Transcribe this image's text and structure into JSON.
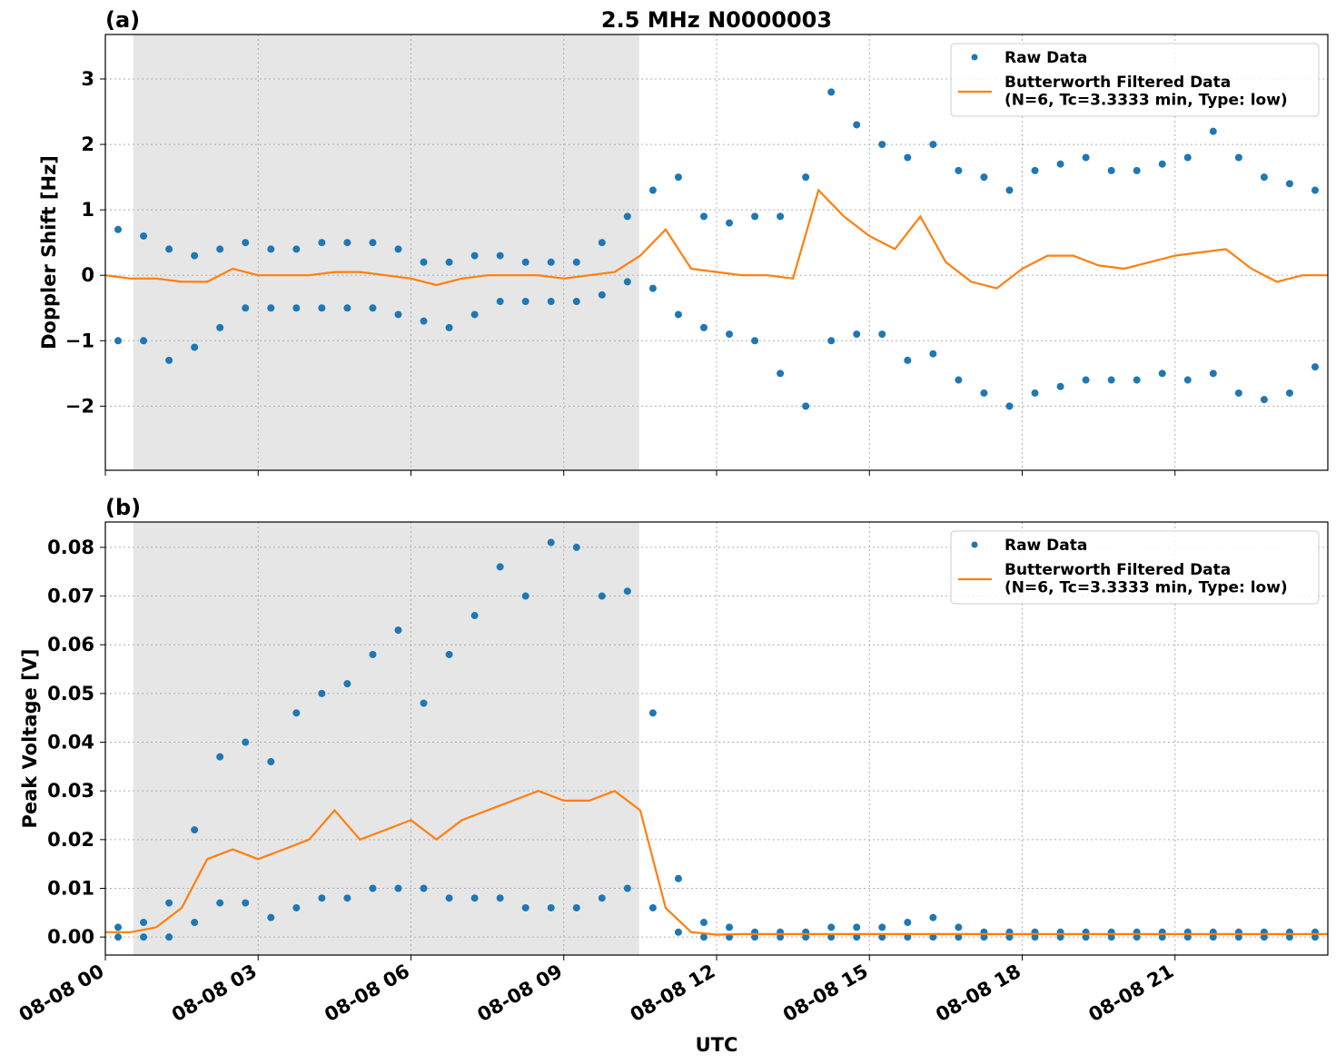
{
  "chart_data": [
    {
      "type": "scatter+line",
      "title": "2.5 MHz N0000003",
      "panel_label": "(a)",
      "y_label": "Doppler Shift [Hz]",
      "xlim": [
        0,
        24
      ],
      "xticks": [
        0,
        3,
        6,
        9,
        12,
        15,
        18,
        21
      ],
      "ylim": [
        -2.98,
        3.68
      ],
      "yticks": [
        {
          "value": -2,
          "label": "−2"
        },
        {
          "value": -1,
          "label": "−1"
        },
        0,
        1,
        2,
        3
      ],
      "grid": true,
      "legend": "upper right",
      "shaded_span": [
        0.55,
        10.48
      ],
      "series": [
        {
          "name": "Raw Data",
          "kind": "scatter",
          "color": "#1f77b4",
          "x": [
            0.25,
            0.75,
            1.25,
            1.75,
            2.25,
            2.75,
            3.25,
            3.75,
            4.25,
            4.75,
            5.25,
            5.75,
            6.25,
            6.75,
            7.25,
            7.75,
            8.25,
            8.75,
            9.25,
            9.75,
            10.25,
            10.75,
            11.25,
            11.75,
            12.25,
            12.75,
            13.25,
            13.75,
            14.25,
            14.75,
            15.25,
            15.75,
            16.25,
            16.75,
            17.25,
            17.75,
            18.25,
            18.75,
            19.25,
            19.75,
            20.25,
            20.75,
            21.25,
            21.75,
            22.25,
            22.75,
            23.25,
            23.75,
            0.25,
            0.75,
            1.25,
            1.75,
            2.25,
            2.75,
            3.25,
            3.75,
            4.25,
            4.75,
            5.25,
            5.75,
            6.25,
            6.75,
            7.25,
            7.75,
            8.25,
            8.75,
            9.25,
            9.75,
            10.25,
            10.75,
            11.25,
            11.75,
            12.25,
            12.75,
            13.25,
            13.75,
            14.25,
            14.75,
            15.25,
            15.75,
            16.25,
            16.75,
            17.25,
            17.75,
            18.25,
            18.75,
            19.25,
            19.75,
            20.25,
            20.75,
            21.25,
            21.75,
            22.25,
            22.75,
            23.25,
            23.75
          ],
          "values": [
            0.7,
            0.6,
            0.4,
            0.3,
            0.4,
            0.5,
            0.4,
            0.4,
            0.5,
            0.5,
            0.5,
            0.4,
            0.2,
            0.2,
            0.3,
            0.3,
            0.2,
            0.2,
            0.2,
            0.5,
            0.9,
            1.3,
            1.5,
            0.9,
            0.8,
            0.9,
            0.9,
            1.5,
            2.8,
            2.3,
            2.0,
            1.8,
            2.0,
            1.6,
            1.5,
            1.3,
            1.6,
            1.7,
            1.8,
            1.6,
            1.6,
            1.7,
            1.8,
            2.2,
            1.8,
            1.5,
            1.4,
            1.3,
            -1.0,
            -1.0,
            -1.3,
            -1.1,
            -0.8,
            -0.5,
            -0.5,
            -0.5,
            -0.5,
            -0.5,
            -0.5,
            -0.6,
            -0.7,
            -0.8,
            -0.6,
            -0.4,
            -0.4,
            -0.4,
            -0.4,
            -0.3,
            -0.1,
            -0.2,
            -0.6,
            -0.8,
            -0.9,
            -1.0,
            -1.5,
            -2.0,
            -1.0,
            -0.9,
            -0.9,
            -1.3,
            -1.2,
            -1.6,
            -1.8,
            -2.0,
            -1.8,
            -1.7,
            -1.6,
            -1.6,
            -1.6,
            -1.5,
            -1.6,
            -1.5,
            -1.8,
            -1.9,
            -1.8,
            -1.4
          ]
        },
        {
          "name": "Butterworth Filtered Data\n(N=6, Tc=3.3333 min, Type: low)",
          "kind": "line",
          "color": "#ff7f0e",
          "x": [
            0,
            0.5,
            1,
            1.5,
            2,
            2.5,
            3,
            3.5,
            4,
            4.5,
            5,
            5.5,
            6,
            6.5,
            7,
            7.5,
            8,
            8.5,
            9,
            9.5,
            10,
            10.5,
            11,
            11.5,
            12,
            12.5,
            13,
            13.5,
            14,
            14.5,
            15,
            15.5,
            16,
            16.5,
            17,
            17.5,
            18,
            18.5,
            19,
            19.5,
            20,
            20.5,
            21,
            21.5,
            22,
            22.5,
            23,
            23.5,
            24
          ],
          "values": [
            0,
            -0.05,
            -0.05,
            -0.1,
            -0.1,
            0.1,
            0,
            0,
            0,
            0.05,
            0.05,
            0,
            -0.05,
            -0.15,
            -0.05,
            0,
            0,
            0,
            -0.05,
            0,
            0.05,
            0.3,
            0.7,
            0.1,
            0.05,
            0,
            0,
            -0.05,
            1.3,
            0.9,
            0.6,
            0.4,
            0.9,
            0.2,
            -0.1,
            -0.2,
            0.1,
            0.3,
            0.3,
            0.15,
            0.1,
            0.2,
            0.3,
            0.35,
            0.4,
            0.1,
            -0.1,
            0,
            0
          ]
        }
      ]
    },
    {
      "type": "scatter+line",
      "panel_label": "(b)",
      "y_label": "Peak Voltage [V]",
      "x_label": "UTC",
      "xlim": [
        0,
        24
      ],
      "xticks": [
        {
          "value": 0,
          "label": "08-08 00"
        },
        {
          "value": 3,
          "label": "08-08 03"
        },
        {
          "value": 6,
          "label": "08-08 06"
        },
        {
          "value": 9,
          "label": "08-08 09"
        },
        {
          "value": 12,
          "label": "08-08 12"
        },
        {
          "value": 15,
          "label": "08-08 15"
        },
        {
          "value": 18,
          "label": "08-08 18"
        },
        {
          "value": 21,
          "label": "08-08 21"
        }
      ],
      "ylim": [
        -0.0037,
        0.0852
      ],
      "yticks": [
        {
          "value": 0,
          "label": "0.00"
        },
        0.01,
        0.02,
        0.03,
        0.04,
        0.05,
        0.06,
        0.07,
        0.08
      ],
      "grid": true,
      "legend": "upper right",
      "shaded_span": [
        0.55,
        10.48
      ],
      "series": [
        {
          "name": "Raw Data",
          "kind": "scatter",
          "color": "#1f77b4",
          "x": [
            0.25,
            0.75,
            1.25,
            1.75,
            2.25,
            2.75,
            3.25,
            3.75,
            4.25,
            4.75,
            5.25,
            5.75,
            6.25,
            6.75,
            7.25,
            7.75,
            8.25,
            8.75,
            9.25,
            9.75,
            10.25,
            10.75,
            11.25,
            11.75,
            12.25,
            12.75,
            13.25,
            13.75,
            14.25,
            14.75,
            15.25,
            15.75,
            16.25,
            16.75,
            17.25,
            17.75,
            18.25,
            18.75,
            19.25,
            19.75,
            20.25,
            20.75,
            21.25,
            21.75,
            22.25,
            22.75,
            23.25,
            23.75,
            0.25,
            0.75,
            1.25,
            1.75,
            2.25,
            2.75,
            3.25,
            3.75,
            4.25,
            4.75,
            5.25,
            5.75,
            6.25,
            6.75,
            7.25,
            7.75,
            8.25,
            8.75,
            9.25,
            9.75,
            10.25,
            10.75,
            11.25,
            11.75,
            12.25,
            12.75,
            13.25,
            13.75,
            14.25,
            14.75,
            15.25,
            15.75,
            16.25,
            16.75,
            17.25,
            17.75,
            18.25,
            18.75,
            19.25,
            19.75,
            20.25,
            20.75,
            21.25,
            21.75,
            22.25,
            22.75,
            23.25,
            23.75
          ],
          "values": [
            0.002,
            0.003,
            0.007,
            0.022,
            0.037,
            0.04,
            0.036,
            0.046,
            0.05,
            0.052,
            0.058,
            0.063,
            0.048,
            0.058,
            0.066,
            0.076,
            0.07,
            0.081,
            0.08,
            0.07,
            0.071,
            0.046,
            0.012,
            0.003,
            0.002,
            0.001,
            0.001,
            0.001,
            0.002,
            0.002,
            0.002,
            0.003,
            0.004,
            0.002,
            0.001,
            0.001,
            0.001,
            0.001,
            0.001,
            0.001,
            0.001,
            0.001,
            0.001,
            0.001,
            0.001,
            0.001,
            0.001,
            0.001,
            0,
            0,
            0,
            0.003,
            0.007,
            0.007,
            0.004,
            0.006,
            0.008,
            0.008,
            0.01,
            0.01,
            0.01,
            0.008,
            0.008,
            0.008,
            0.006,
            0.006,
            0.006,
            0.008,
            0.01,
            0.006,
            0.001,
            0,
            0,
            0,
            0,
            0,
            0,
            0,
            0,
            0,
            0,
            0,
            0,
            0,
            0,
            0,
            0,
            0,
            0,
            0,
            0,
            0,
            0,
            0,
            0,
            0
          ]
        },
        {
          "name": "Butterworth Filtered Data\n(N=6, Tc=3.3333 min, Type: low)",
          "kind": "line",
          "color": "#ff7f0e",
          "x": [
            0,
            0.5,
            1,
            1.5,
            2,
            2.5,
            3,
            3.5,
            4,
            4.5,
            5,
            5.5,
            6,
            6.5,
            7,
            7.5,
            8,
            8.5,
            9,
            9.5,
            10,
            10.5,
            11,
            11.5,
            12,
            12.5,
            13,
            13.5,
            14,
            14.5,
            15,
            15.5,
            16,
            16.5,
            17,
            17.5,
            18,
            18.5,
            19,
            19.5,
            20,
            20.5,
            21,
            21.5,
            22,
            22.5,
            23,
            23.5,
            24
          ],
          "values": [
            0.001,
            0.001,
            0.002,
            0.006,
            0.016,
            0.018,
            0.016,
            0.018,
            0.02,
            0.026,
            0.02,
            0.022,
            0.024,
            0.02,
            0.024,
            0.026,
            0.028,
            0.03,
            0.028,
            0.028,
            0.03,
            0.026,
            0.006,
            0.001,
            0.0005,
            0.0006,
            0.0006,
            0.0006,
            0.0006,
            0.0006,
            0.0006,
            0.0006,
            0.0006,
            0.0006,
            0.0006,
            0.0006,
            0.0006,
            0.0006,
            0.0006,
            0.0006,
            0.0006,
            0.0006,
            0.0006,
            0.0006,
            0.0006,
            0.0006,
            0.0006,
            0.0006,
            0.0006
          ]
        }
      ]
    }
  ]
}
